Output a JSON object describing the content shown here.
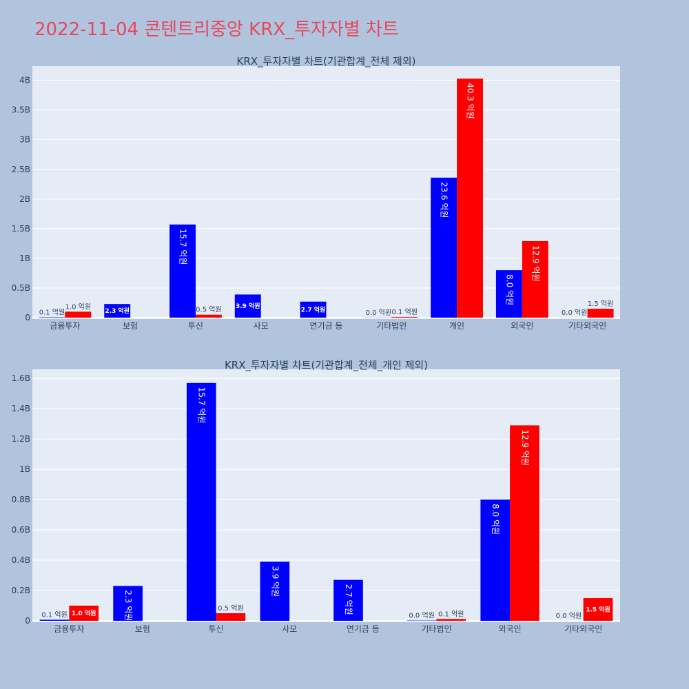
{
  "page": {
    "title": "2022-11-04 콘텐트리중앙 KRX_투자자별 차트"
  },
  "colors": {
    "background": "#b0c4de",
    "plot_bg": "#e5ecf6",
    "buy": "#0000ff",
    "sell": "#ff0000",
    "title": "#e8475c"
  },
  "chart_data": [
    {
      "type": "bar",
      "title": "KRX_투자자별 차트(기관합계_전체 제외)",
      "categories": [
        "금융투자",
        "보험",
        "투신",
        "사모",
        "연기금 등",
        "기타법인",
        "개인",
        "외국인",
        "기타외국인"
      ],
      "series": [
        {
          "color": "#0000ff",
          "values": [
            0.007,
            0.23,
            1.57,
            0.39,
            0.27,
            0.002,
            2.36,
            0.8,
            0.0
          ],
          "labels": [
            "0.1 억원",
            "2.3 억원",
            "15.7 억원",
            "3.9 억원",
            "2.7 억원",
            "0.0 억원",
            "23.6 억원",
            "8.0 억원",
            "0.0 억원"
          ]
        },
        {
          "color": "#ff0000",
          "values": [
            0.1,
            0.0,
            0.05,
            0.0,
            0.0,
            0.012,
            4.03,
            1.29,
            0.15
          ],
          "labels": [
            "1.0 억원",
            "",
            "0.5 억원",
            "",
            "",
            "0.1 억원",
            "40.3 억원",
            "12.9 억원",
            "1.5 억원"
          ]
        }
      ],
      "yticks": [
        "0",
        "0.5B",
        "1B",
        "1.5B",
        "2B",
        "2.5B",
        "3B",
        "3.5B",
        "4B"
      ],
      "ytick_values": [
        0,
        0.5,
        1,
        1.5,
        2,
        2.5,
        3,
        3.5,
        4
      ],
      "ylim": [
        0,
        4.24
      ],
      "grid": true
    },
    {
      "type": "bar",
      "title": "KRX_투자자별 차트(기관합계_전체_개인 제외)",
      "categories": [
        "금융투자",
        "보험",
        "투신",
        "사모",
        "연기금 등",
        "기타법인",
        "외국인",
        "기타외국인"
      ],
      "series": [
        {
          "color": "#0000ff",
          "values": [
            0.007,
            0.23,
            1.57,
            0.39,
            0.27,
            0.002,
            0.8,
            0.0
          ],
          "labels": [
            "0.1 억원",
            "2.3 억원",
            "15.7 억원",
            "3.9 억원",
            "2.7 억원",
            "0.0 억원",
            "8.0 억원",
            "0.0 억원"
          ]
        },
        {
          "color": "#ff0000",
          "values": [
            0.1,
            0.0,
            0.05,
            0.0,
            0.0,
            0.012,
            1.29,
            0.15
          ],
          "labels": [
            "1.0 억원",
            "",
            "0.5 억원",
            "",
            "",
            "0.1 억원",
            "12.9 억원",
            "1.5 억원"
          ]
        }
      ],
      "yticks": [
        "0",
        "0.2B",
        "0.4B",
        "0.6B",
        "0.8B",
        "1B",
        "1.2B",
        "1.4B",
        "1.6B"
      ],
      "ytick_values": [
        0,
        0.2,
        0.4,
        0.6,
        0.8,
        1.0,
        1.2,
        1.4,
        1.6
      ],
      "ylim": [
        0,
        1.66
      ],
      "grid": true
    }
  ]
}
